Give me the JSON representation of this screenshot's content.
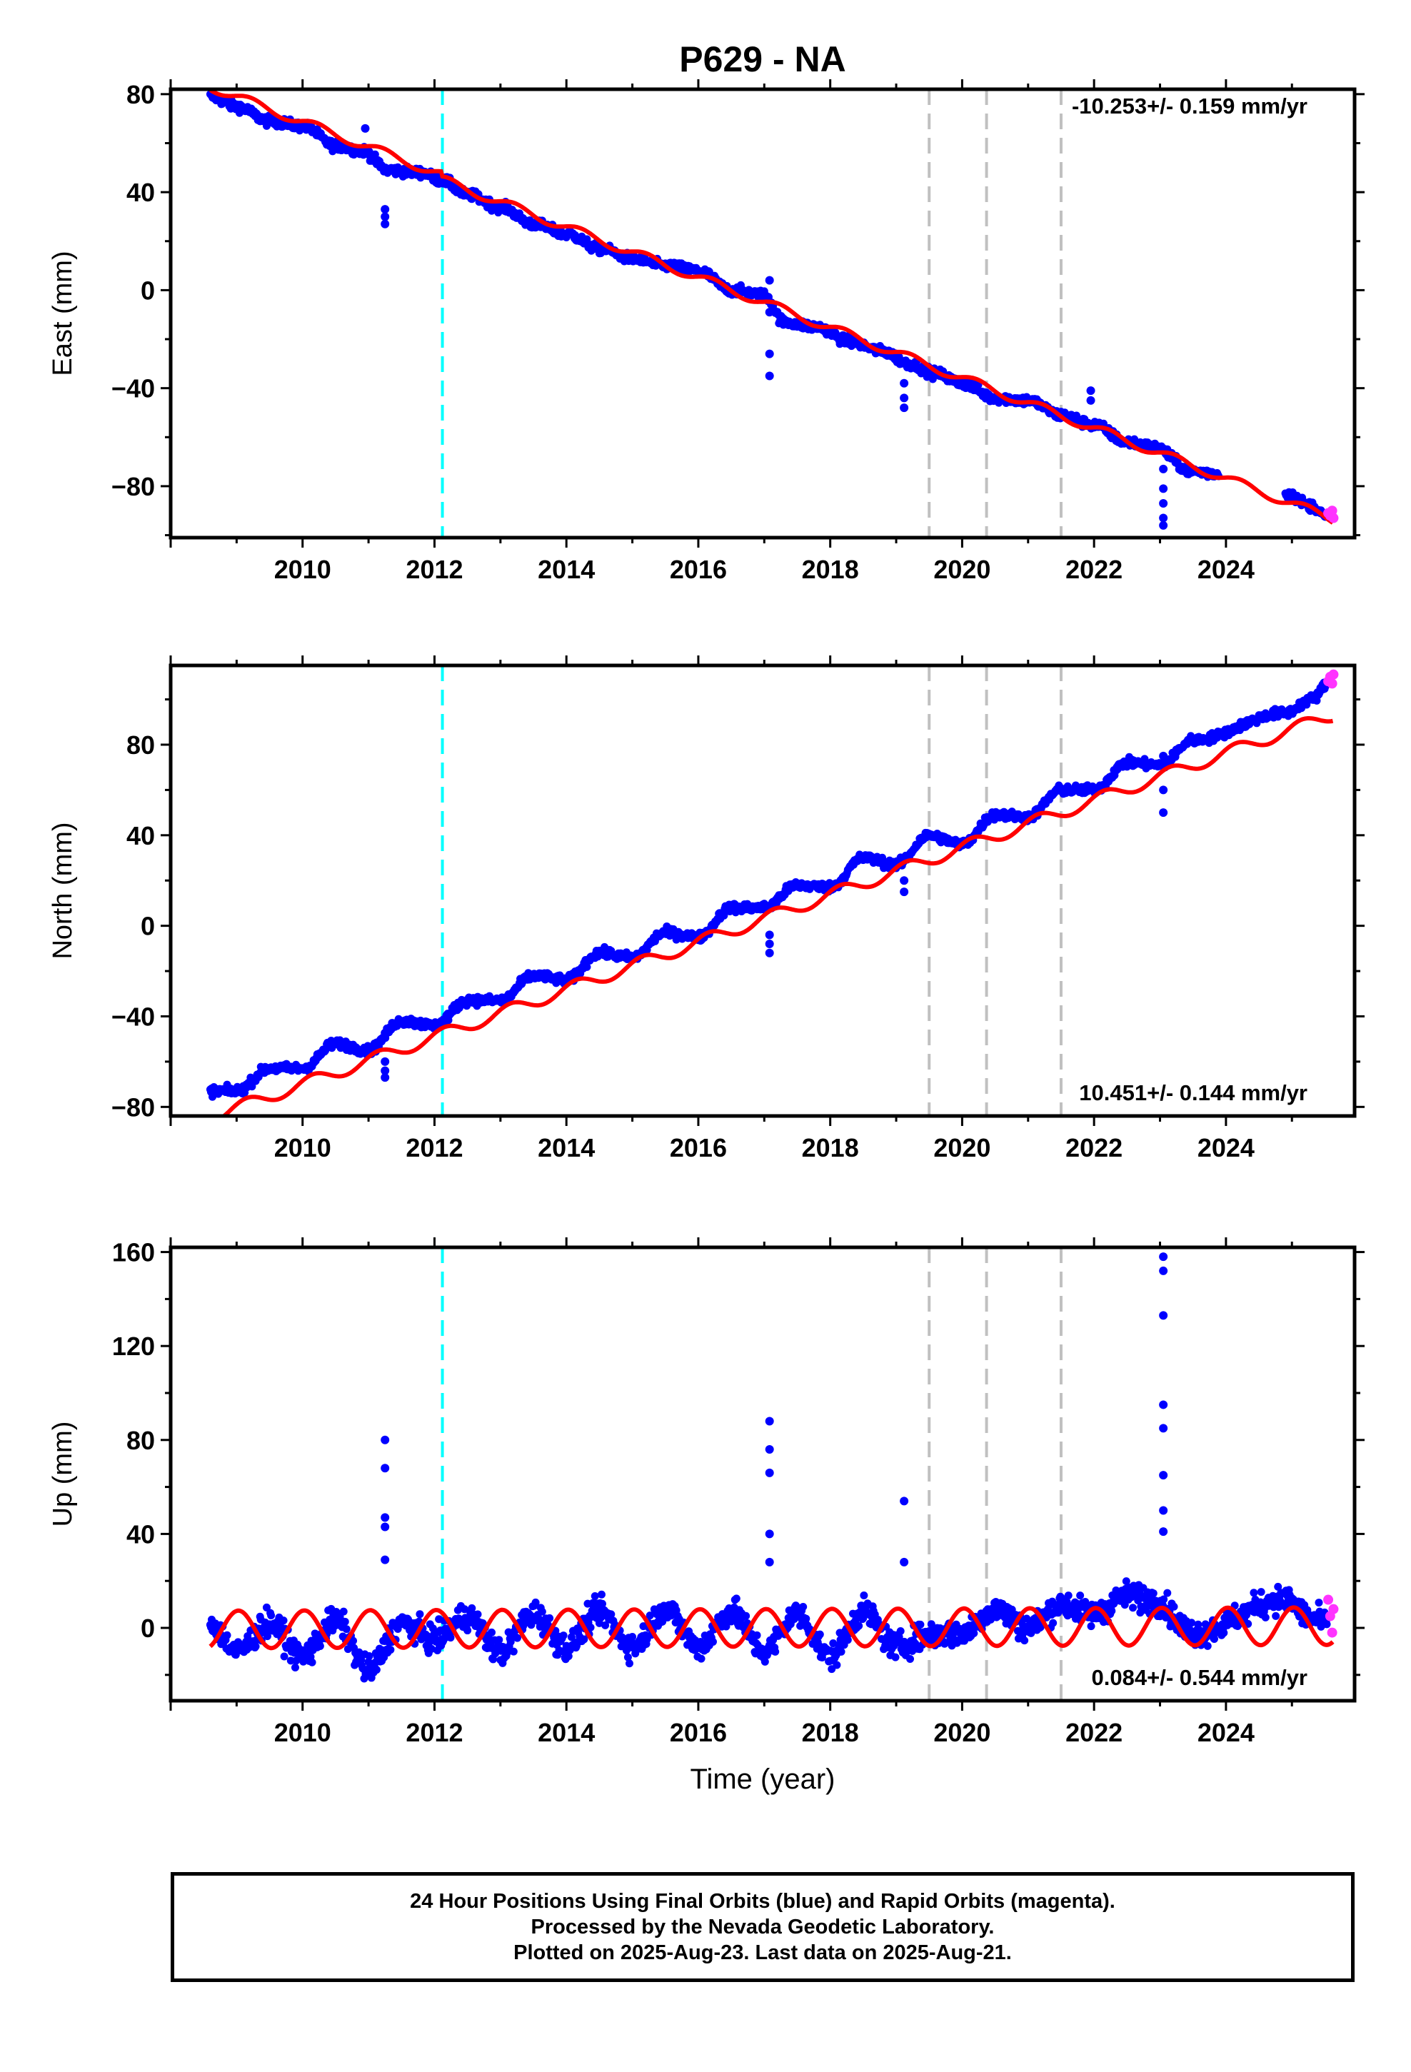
{
  "figure_title": "P629 - NA",
  "colors": {
    "final_orbits": "#0000ff",
    "rapid_orbits": "#ff33ff",
    "model": "#ff0000",
    "equipment_change": "#00ffff",
    "other_event": "#c0c0c0"
  },
  "chart_data": [
    {
      "type": "scatter",
      "title": "P629 - NA",
      "ylabel": "East (mm)",
      "xlabel": "",
      "xlim": [
        2008.0,
        2025.95
      ],
      "ylim": [
        -101,
        82
      ],
      "xticks": [
        2010,
        2012,
        2014,
        2016,
        2018,
        2020,
        2022,
        2024
      ],
      "yticks": [
        80,
        40,
        0,
        -40,
        -80
      ],
      "rate_label": "-10.253+/- 0.159 mm/yr",
      "rate_position": "top-right",
      "series": [
        {
          "style": "final-orbits",
          "x": [
            2008.6,
            2009.0,
            2009.5,
            2010.0,
            2010.5,
            2010.9,
            2011.3,
            2011.8,
            2012.1,
            2012.5,
            2013.0,
            2013.5,
            2014.0,
            2014.5,
            2015.0,
            2015.5,
            2016.0,
            2016.5,
            2017.0,
            2017.3,
            2017.8,
            2018.3,
            2018.8,
            2019.2,
            2019.6,
            2020.0,
            2020.5,
            2021.0,
            2021.5,
            2022.0,
            2022.5,
            2022.9,
            2023.5,
            2023.9,
            2024.9,
            2025.3,
            2025.55
          ],
          "y": [
            79,
            75,
            69,
            67,
            59,
            57,
            49,
            48,
            45,
            39,
            34,
            27,
            23,
            17,
            13,
            10,
            8,
            0,
            -2,
            -13,
            -15,
            -21,
            -25,
            -30,
            -34,
            -38,
            -44,
            -45,
            -51,
            -55,
            -62,
            -64,
            -74,
            -75,
            -83,
            -88,
            -93
          ]
        },
        {
          "style": "outliers",
          "x": [
            2011.25,
            2011.25,
            2011.25,
            2010.95,
            2017.08,
            2017.08,
            2017.08,
            2017.08,
            2019.12,
            2019.12,
            2019.12,
            2021.95,
            2021.95,
            2023.05,
            2023.05,
            2023.05,
            2023.05,
            2023.05
          ],
          "y": [
            33,
            30,
            27,
            66,
            4,
            -9,
            -26,
            -35,
            -38,
            -44,
            -48,
            -41,
            -45,
            -73,
            -81,
            -87,
            -93,
            -96
          ]
        },
        {
          "style": "rapid-orbits",
          "x": [
            2025.55,
            2025.58,
            2025.61,
            2025.63
          ],
          "y": [
            -91,
            -92,
            -90,
            -93
          ]
        }
      ],
      "model": {
        "rate": -10.253,
        "intercept": 0,
        "ref_year": 2016.7,
        "annual_amp": 1.8,
        "annual_phase": 0.2,
        "offsets": [
          {
            "year": 2012.1,
            "value": -2
          }
        ]
      },
      "event_lines": [
        {
          "year": 2012.12,
          "kind": "equipment_change"
        },
        {
          "year": 2019.5,
          "kind": "other_event"
        },
        {
          "year": 2020.37,
          "kind": "other_event"
        },
        {
          "year": 2021.5,
          "kind": "other_event"
        }
      ],
      "grid": false,
      "legend": "none"
    },
    {
      "type": "scatter",
      "ylabel": "North (mm)",
      "xlabel": "",
      "xlim": [
        2008.0,
        2025.95
      ],
      "ylim": [
        -84,
        115
      ],
      "xticks": [
        2010,
        2012,
        2014,
        2016,
        2018,
        2020,
        2022,
        2024
      ],
      "yticks": [
        80,
        40,
        0,
        -40,
        -80
      ],
      "rate_label": "10.451+/- 0.144 mm/yr",
      "rate_position": "bottom-right",
      "series": [
        {
          "style": "final-orbits",
          "x": [
            2008.6,
            2009.0,
            2009.5,
            2010.0,
            2010.5,
            2011.0,
            2011.5,
            2012.0,
            2012.5,
            2013.0,
            2013.5,
            2014.0,
            2014.5,
            2015.0,
            2015.5,
            2016.0,
            2016.5,
            2017.0,
            2017.5,
            2018.0,
            2018.5,
            2019.0,
            2019.5,
            2020.0,
            2020.5,
            2021.0,
            2021.5,
            2022.0,
            2022.5,
            2023.0,
            2023.5,
            2024.9,
            2025.3,
            2025.55
          ],
          "y": [
            -73,
            -73,
            -63,
            -63,
            -52,
            -55,
            -42,
            -44,
            -33,
            -33,
            -22,
            -24,
            -12,
            -14,
            -3,
            -5,
            8,
            8,
            18,
            17,
            30,
            27,
            40,
            36,
            49,
            48,
            60,
            60,
            72,
            71,
            82,
            94,
            100,
            107
          ]
        },
        {
          "style": "outliers",
          "x": [
            2011.25,
            2011.25,
            2011.25,
            2017.08,
            2017.08,
            2017.08,
            2019.12,
            2019.12,
            2023.05,
            2023.05,
            2023.05
          ],
          "y": [
            -60,
            -64,
            -67,
            -4,
            -8,
            -12,
            20,
            15,
            75,
            60,
            50
          ]
        },
        {
          "style": "rapid-orbits",
          "x": [
            2025.55,
            2025.58,
            2025.61,
            2025.63
          ],
          "y": [
            108,
            110,
            107,
            111
          ]
        }
      ],
      "model": {
        "rate": 10.451,
        "intercept": 0,
        "ref_year": 2016.7,
        "annual_amp": 2.8,
        "annual_phase": 0.6,
        "offsets": []
      },
      "event_lines": [
        {
          "year": 2012.12,
          "kind": "equipment_change"
        },
        {
          "year": 2019.5,
          "kind": "other_event"
        },
        {
          "year": 2020.37,
          "kind": "other_event"
        },
        {
          "year": 2021.5,
          "kind": "other_event"
        }
      ],
      "grid": false,
      "legend": "none"
    },
    {
      "type": "scatter",
      "ylabel": "Up (mm)",
      "xlabel": "Time (year)",
      "xlim": [
        2008.0,
        2025.95
      ],
      "ylim": [
        -31,
        162
      ],
      "xticks": [
        2010,
        2012,
        2014,
        2016,
        2018,
        2020,
        2022,
        2024
      ],
      "yticks": [
        160,
        120,
        80,
        40,
        0
      ],
      "rate_label": "0.084+/- 0.544 mm/yr",
      "rate_position": "bottom-right",
      "series": [
        {
          "style": "final-orbits",
          "x": [
            2008.6,
            2009.0,
            2009.5,
            2010.0,
            2010.5,
            2011.0,
            2011.5,
            2012.0,
            2012.5,
            2013.0,
            2013.5,
            2014.0,
            2014.5,
            2015.0,
            2015.5,
            2016.0,
            2016.5,
            2017.0,
            2017.5,
            2018.0,
            2018.5,
            2019.0,
            2019.5,
            2020.0,
            2020.5,
            2021.0,
            2021.5,
            2022.0,
            2022.5,
            2022.9,
            2023.5,
            2024.9,
            2025.3,
            2025.55
          ],
          "y": [
            2,
            -10,
            2,
            -12,
            3,
            -18,
            2,
            -5,
            5,
            -10,
            6,
            -8,
            7,
            -8,
            8,
            -8,
            7,
            -10,
            6,
            -12,
            7,
            -8,
            -3,
            -2,
            8,
            0,
            10,
            6,
            14,
            12,
            -2,
            12,
            4,
            2
          ]
        },
        {
          "style": "outliers",
          "x": [
            2011.25,
            2011.25,
            2011.25,
            2011.25,
            2011.25,
            2017.08,
            2017.08,
            2017.08,
            2017.08,
            2017.08,
            2019.12,
            2019.12,
            2023.05,
            2023.05,
            2023.05,
            2023.05,
            2023.05,
            2023.05,
            2023.05,
            2023.05
          ],
          "y": [
            80,
            68,
            47,
            43,
            29,
            88,
            76,
            66,
            40,
            28,
            54,
            28,
            158,
            152,
            133,
            95,
            85,
            65,
            50,
            41
          ]
        },
        {
          "style": "rapid-orbits",
          "x": [
            2025.55,
            2025.58,
            2025.61,
            2025.63
          ],
          "y": [
            12,
            5,
            -2,
            8
          ]
        }
      ],
      "model": {
        "rate": 0.084,
        "intercept": 0,
        "ref_year": 2016.7,
        "annual_amp": 8.0,
        "annual_phase": 1.4,
        "offsets": []
      },
      "event_lines": [
        {
          "year": 2012.12,
          "kind": "equipment_change"
        },
        {
          "year": 2019.5,
          "kind": "other_event"
        },
        {
          "year": 2020.37,
          "kind": "other_event"
        },
        {
          "year": 2021.5,
          "kind": "other_event"
        }
      ],
      "grid": false,
      "legend": "none"
    }
  ],
  "caption": {
    "line1": "24 Hour Positions Using Final Orbits (blue) and Rapid Orbits (magenta).",
    "line2": "Processed by the Nevada Geodetic Laboratory.",
    "line3": "Plotted on 2025-Aug-23. Last data on 2025-Aug-21."
  }
}
